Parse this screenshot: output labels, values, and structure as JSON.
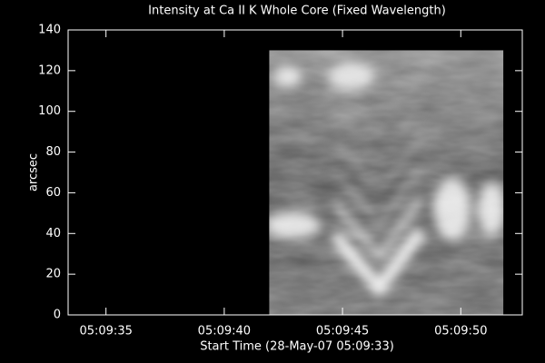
{
  "chart_data": {
    "type": "image",
    "title": "Intensity at Ca II K Whole Core (Fixed Wavelength)",
    "xlabel": "Start Time (28-May-07 05:09:33)",
    "ylabel": "arcsec",
    "xlim": [
      0.4,
      19.6
    ],
    "xticks": [
      {
        "value": 2,
        "label": "05:09:35"
      },
      {
        "value": 7,
        "label": "05:09:40"
      },
      {
        "value": 12,
        "label": "05:09:45"
      },
      {
        "value": 17,
        "label": "05:09:50"
      }
    ],
    "ylim": [
      0,
      140
    ],
    "yticks": [
      0,
      20,
      40,
      60,
      80,
      100,
      120,
      140
    ],
    "image_xlim": [
      8.9,
      18.8
    ],
    "image_ylim": [
      0,
      130
    ],
    "color": "#ffffff"
  }
}
